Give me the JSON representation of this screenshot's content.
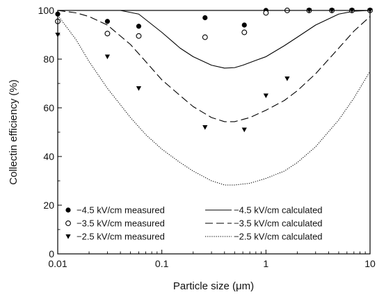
{
  "chart_data": {
    "type": "scatter",
    "title": "",
    "xlabel": "Particle size (μm)",
    "ylabel": "Collectin efficiency (%)",
    "xscale": "log",
    "xlim": [
      0.01,
      10
    ],
    "ylim": [
      0,
      100
    ],
    "x_ticks": [
      0.01,
      0.1,
      1,
      10
    ],
    "x_tick_labels": [
      "0.01",
      "0.1",
      "1",
      "10"
    ],
    "y_ticks": [
      0,
      20,
      40,
      60,
      80,
      100
    ],
    "y_tick_labels": [
      "0",
      "20",
      "40",
      "60",
      "80",
      "100"
    ],
    "grid": false,
    "legend_position": "bottom",
    "series": [
      {
        "name": "−4.5 kV/cm measured",
        "kind": "scatter",
        "marker": "filled-circle",
        "color": "#000000",
        "x": [
          0.01,
          0.03,
          0.06,
          0.26,
          0.62,
          1.0,
          1.6,
          2.6,
          4.3,
          6.7,
          10.0
        ],
        "y": [
          98.5,
          95.5,
          93.5,
          97,
          94,
          100,
          100,
          100,
          100,
          100,
          100
        ]
      },
      {
        "name": "−3.5 kV/cm measured",
        "kind": "scatter",
        "marker": "open-circle",
        "color": "#000000",
        "x": [
          0.01,
          0.03,
          0.06,
          0.26,
          0.62,
          1.0,
          1.6,
          2.6,
          4.3,
          6.7,
          10.0
        ],
        "y": [
          95.5,
          90.5,
          89.5,
          89,
          91,
          99,
          100,
          100,
          100,
          100,
          100
        ]
      },
      {
        "name": "−2.5 kV/cm measured",
        "kind": "scatter",
        "marker": "filled-triangle-down",
        "color": "#000000",
        "x": [
          0.01,
          0.03,
          0.06,
          0.26,
          0.62,
          1.0,
          1.6,
          2.6,
          4.3,
          6.7,
          10.0
        ],
        "y": [
          90,
          81,
          68,
          52,
          51,
          65,
          72,
          100,
          100,
          100,
          100
        ]
      },
      {
        "name": "−4.5 kV/cm calculated",
        "kind": "line",
        "dash": "solid",
        "color": "#000000",
        "x": [
          0.01,
          0.02,
          0.04,
          0.06,
          0.1,
          0.15,
          0.2,
          0.3,
          0.4,
          0.5,
          0.6,
          0.8,
          1.0,
          1.5,
          2.0,
          3.0,
          5.0,
          7.0,
          10.0
        ],
        "y": [
          100,
          100,
          100,
          98.5,
          91,
          84.5,
          81,
          77.5,
          76.3,
          76.5,
          77.5,
          79.5,
          81,
          85.5,
          89,
          94,
          98.5,
          99.7,
          100
        ]
      },
      {
        "name": "−3.5 kV/cm calculated",
        "kind": "line",
        "dash": "dashed",
        "color": "#000000",
        "x": [
          0.01,
          0.015,
          0.02,
          0.03,
          0.05,
          0.07,
          0.1,
          0.15,
          0.2,
          0.3,
          0.4,
          0.5,
          0.7,
          1.0,
          1.5,
          2.0,
          3.0,
          5.0,
          7.0,
          10.0
        ],
        "y": [
          100,
          99,
          97.5,
          94,
          86,
          79,
          71.5,
          65,
          60.5,
          56,
          54.3,
          54.3,
          56,
          59,
          63,
          67,
          74,
          84.5,
          91.5,
          97.5
        ]
      },
      {
        "name": "−2.5 kV/cm calculated",
        "kind": "line",
        "dash": "dotted",
        "color": "#000000",
        "x": [
          0.01,
          0.015,
          0.02,
          0.03,
          0.05,
          0.07,
          0.1,
          0.15,
          0.2,
          0.3,
          0.4,
          0.5,
          0.7,
          1.0,
          1.5,
          2.0,
          3.0,
          5.0,
          7.0,
          10.0
        ],
        "y": [
          98,
          88,
          79,
          68,
          56,
          49,
          43,
          37.5,
          34,
          30,
          28.3,
          28.3,
          29,
          31,
          34,
          37.5,
          44,
          55,
          64,
          75
        ]
      }
    ],
    "legend": [
      {
        "label": "−4.5 kV/cm measured",
        "series": 0
      },
      {
        "label": "−4.5 kV/cm calculated",
        "series": 3
      },
      {
        "label": "−3.5 kV/cm measured",
        "series": 1
      },
      {
        "label": "−3.5 kV/cm calculated",
        "series": 4
      },
      {
        "label": "−2.5 kV/cm measured",
        "series": 2
      },
      {
        "label": "−2.5 kV/cm calculated",
        "series": 5
      }
    ]
  }
}
